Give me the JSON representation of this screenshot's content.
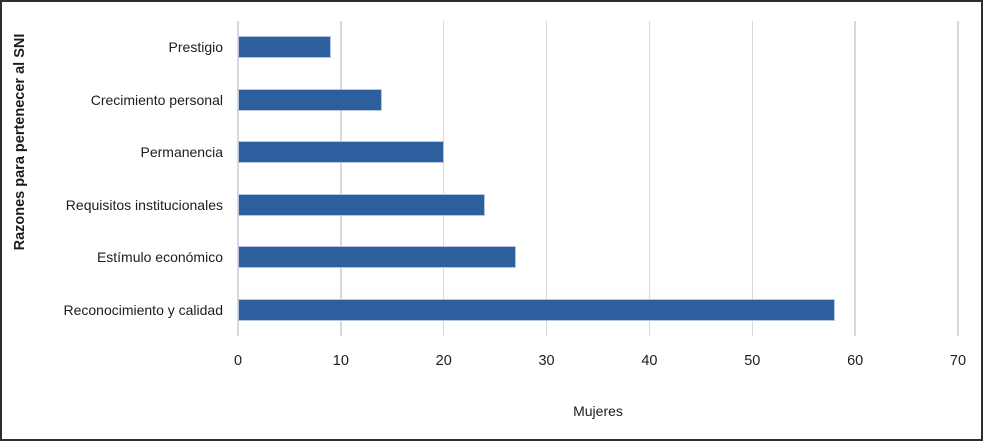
{
  "chart_data": {
    "type": "bar",
    "orientation": "horizontal",
    "categories": [
      "Prestigio",
      "Crecimiento personal",
      "Permanencia",
      "Requisitos institucionales",
      "Estímulo económico",
      "Reconocimiento y calidad"
    ],
    "values": [
      9,
      14,
      20,
      24,
      27,
      58
    ],
    "xlabel": "Mujeres",
    "ylabel": "Razones para pertenecer al SNI",
    "xlim": [
      0,
      70
    ],
    "x_ticks": [
      0,
      10,
      20,
      30,
      40,
      50,
      60,
      70
    ],
    "grid": "vertical-only",
    "legend": "none",
    "bar_color": "#2d5f9f",
    "bar_border_color": "#b7c5e0",
    "gridline_color": "#d9d9d9",
    "text_color": "#1c1c24",
    "frame_border_color": "#2e2e2e"
  }
}
